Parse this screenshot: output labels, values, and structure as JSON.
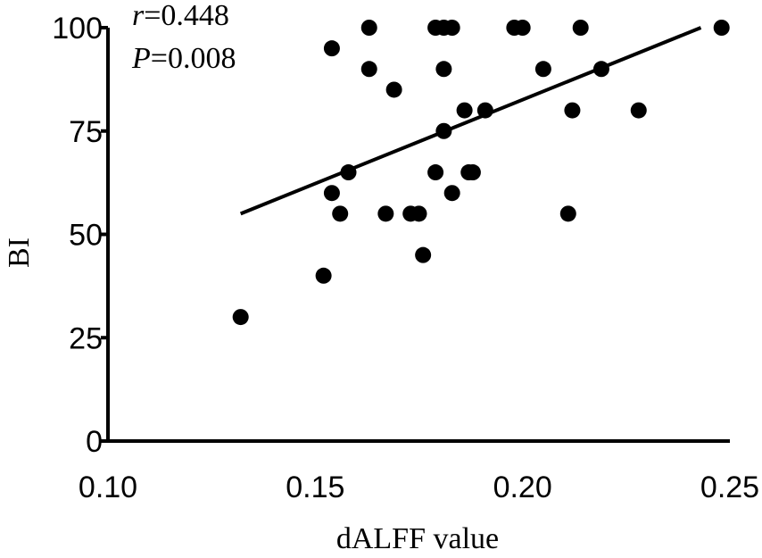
{
  "chart_data": {
    "type": "scatter",
    "xlabel": "dALFF value",
    "ylabel": "BI",
    "xlim": [
      0.1,
      0.25
    ],
    "ylim": [
      0,
      100
    ],
    "xticks": [
      {
        "value": 0.1,
        "label": "0.10"
      },
      {
        "value": 0.15,
        "label": "0.15"
      },
      {
        "value": 0.2,
        "label": "0.20"
      },
      {
        "value": 0.25,
        "label": "0.25"
      }
    ],
    "yticks": [
      {
        "value": 0,
        "label": "0"
      },
      {
        "value": 25,
        "label": "25"
      },
      {
        "value": 50,
        "label": "50"
      },
      {
        "value": 75,
        "label": "75"
      },
      {
        "value": 100,
        "label": "100"
      }
    ],
    "grid": false,
    "annotation": {
      "r_symbol": "r",
      "r_value": "=0.448",
      "p_symbol": "P",
      "p_value": "=0.008"
    },
    "points": [
      {
        "x": 0.132,
        "y": 30
      },
      {
        "x": 0.152,
        "y": 40
      },
      {
        "x": 0.154,
        "y": 95
      },
      {
        "x": 0.154,
        "y": 60
      },
      {
        "x": 0.156,
        "y": 55
      },
      {
        "x": 0.158,
        "y": 65
      },
      {
        "x": 0.163,
        "y": 100
      },
      {
        "x": 0.163,
        "y": 90
      },
      {
        "x": 0.167,
        "y": 55
      },
      {
        "x": 0.169,
        "y": 85
      },
      {
        "x": 0.173,
        "y": 55
      },
      {
        "x": 0.175,
        "y": 55
      },
      {
        "x": 0.176,
        "y": 45
      },
      {
        "x": 0.179,
        "y": 100
      },
      {
        "x": 0.179,
        "y": 65
      },
      {
        "x": 0.181,
        "y": 100
      },
      {
        "x": 0.181,
        "y": 90
      },
      {
        "x": 0.181,
        "y": 75
      },
      {
        "x": 0.183,
        "y": 100
      },
      {
        "x": 0.183,
        "y": 60
      },
      {
        "x": 0.186,
        "y": 80
      },
      {
        "x": 0.187,
        "y": 65
      },
      {
        "x": 0.188,
        "y": 65
      },
      {
        "x": 0.191,
        "y": 80
      },
      {
        "x": 0.198,
        "y": 100
      },
      {
        "x": 0.2,
        "y": 100
      },
      {
        "x": 0.205,
        "y": 90
      },
      {
        "x": 0.211,
        "y": 55
      },
      {
        "x": 0.212,
        "y": 80
      },
      {
        "x": 0.214,
        "y": 100
      },
      {
        "x": 0.219,
        "y": 90
      },
      {
        "x": 0.228,
        "y": 80
      },
      {
        "x": 0.248,
        "y": 100
      }
    ],
    "fit_line": {
      "x": [
        0.132,
        0.243
      ],
      "y": [
        55,
        100
      ]
    }
  }
}
